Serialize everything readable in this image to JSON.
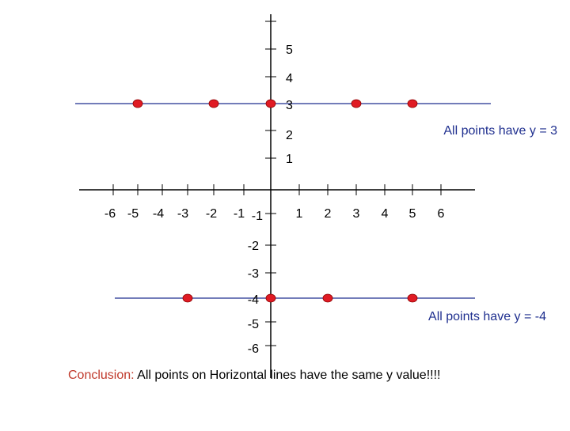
{
  "chart_data": {
    "type": "scatter",
    "x_ticks": [
      "-6",
      "-5",
      "-4",
      "-3",
      "-2",
      "-1",
      "1",
      "2",
      "3",
      "4",
      "5",
      "6"
    ],
    "y_ticks": [
      "5",
      "4",
      "3",
      "2",
      "1",
      "-1",
      "-2",
      "-3",
      "-4",
      "-5",
      "-6"
    ],
    "lines": [
      {
        "y": 3,
        "points_x": [
          -5,
          -2,
          0,
          3,
          5
        ]
      },
      {
        "y": -4,
        "points_x": [
          -3,
          0,
          2,
          5
        ]
      }
    ],
    "annotations": {
      "top": "All points have y = 3",
      "bottom": "All points have y = -4"
    }
  },
  "conclusion": {
    "lead": "Conclusion:",
    "text": "All points on Horizontal lines have the same y value!!!!"
  },
  "colors": {
    "axis": "#000000",
    "horizontal_line": "#1f2f8f",
    "point": "#e01b24",
    "annotation": "#1f2f8f",
    "conclusion_lead": "#c0392b"
  }
}
